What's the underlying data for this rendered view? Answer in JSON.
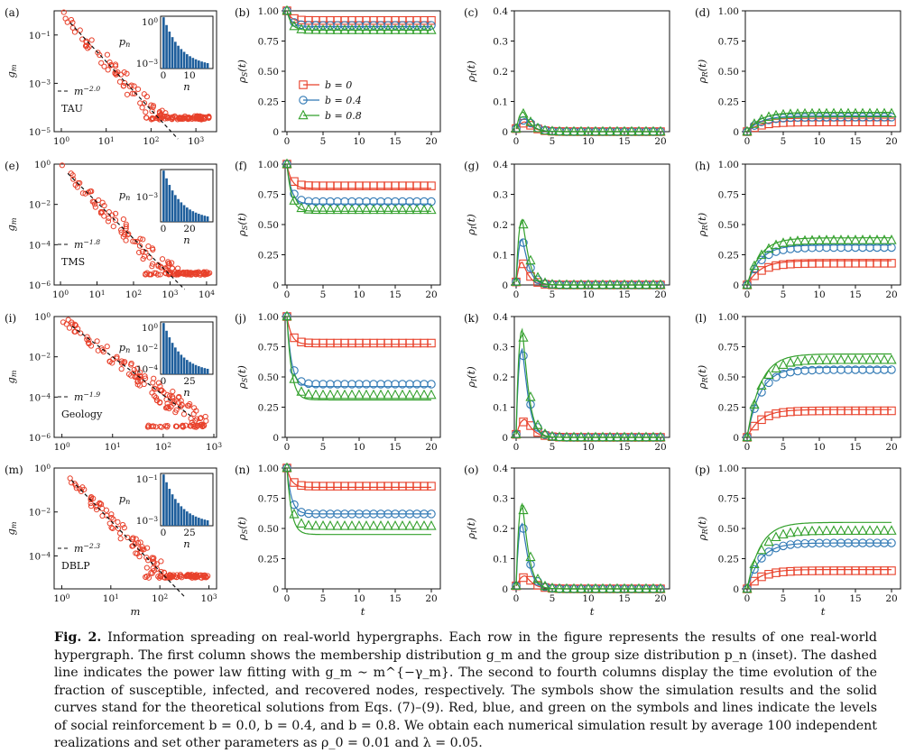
{
  "figure": {
    "colors": {
      "red": "#e8412b",
      "blue": "#2f78b4",
      "green": "#33a02c",
      "bar": "#1f5f9c",
      "black": "#111111"
    },
    "legend": [
      {
        "label": "b = 0",
        "color": "#e8412b",
        "marker": "square"
      },
      {
        "label": "b = 0.4",
        "color": "#2f78b4",
        "marker": "circle"
      },
      {
        "label": "b = 0.8",
        "color": "#33a02c",
        "marker": "triangle"
      }
    ],
    "rows": [
      {
        "dataset": "TAU",
        "membership": {
          "letter": "(a)",
          "ylabel": "g_m",
          "xlabel": "",
          "fit_label": "m^{-2.0}",
          "xmax_exp": 3.4,
          "ymin_exp": -5,
          "ymax_exp": 0,
          "xticks": [
            "10^0",
            "10^1",
            "10^2",
            "10^3"
          ],
          "yticks": [
            "10^{-1}",
            "10^{-3}",
            "10^{-5}"
          ],
          "ytick_exps": [
            -1,
            -3,
            -5
          ],
          "inset": {
            "ylabel": "p_n",
            "xlabel": "n",
            "yticks": [
              "10^0",
              "10^{-3}"
            ],
            "xticks": [
              "0",
              "10"
            ]
          }
        },
        "panels": [
          {
            "letter": "(b)",
            "ylabel": "ρ_S(t)",
            "ymax": 1.0,
            "yticks": [
              "0",
              "0.25",
              "0.50",
              "0.75",
              "1.00"
            ]
          },
          {
            "letter": "(c)",
            "ylabel": "ρ_I(t)",
            "ymax": 0.4,
            "yticks": [
              "0",
              "0.1",
              "0.2",
              "0.3",
              "0.4"
            ]
          },
          {
            "letter": "(d)",
            "ylabel": "ρ_R(t)",
            "ymax": 1.0,
            "yticks": [
              "0",
              "0.25",
              "0.50",
              "0.75",
              "1.00"
            ]
          }
        ]
      },
      {
        "dataset": "TMS",
        "membership": {
          "letter": "(e)",
          "ylabel": "g_m",
          "xlabel": "",
          "fit_label": "m^{-1.8}",
          "xmax_exp": 4.2,
          "ymin_exp": -6,
          "ymax_exp": 0,
          "xticks": [
            "10^0",
            "10^1",
            "10^2",
            "10^3",
            "10^4"
          ],
          "yticks": [
            "10^0",
            "10^{-2}",
            "10^{-4}",
            "10^{-6}"
          ],
          "ytick_exps": [
            0,
            -2,
            -4,
            -6
          ],
          "inset": {
            "ylabel": "p_n",
            "xlabel": "n",
            "yticks": [
              "10^{-3}"
            ],
            "xticks": [
              "0",
              "20"
            ]
          }
        },
        "panels": [
          {
            "letter": "(f)",
            "ylabel": "ρ_S(t)",
            "ymax": 1.0,
            "yticks": [
              "0",
              "0.25",
              "0.50",
              "0.75",
              "1.00"
            ]
          },
          {
            "letter": "(g)",
            "ylabel": "ρ_I(t)",
            "ymax": 0.4,
            "yticks": [
              "0",
              "0.1",
              "0.2",
              "0.3",
              "0.4"
            ]
          },
          {
            "letter": "(h)",
            "ylabel": "ρ_R(t)",
            "ymax": 1.0,
            "yticks": [
              "0",
              "0.25",
              "0.50",
              "0.75",
              "1.00"
            ]
          }
        ]
      },
      {
        "dataset": "Geology",
        "membership": {
          "letter": "(i)",
          "ylabel": "g_m",
          "xlabel": "",
          "fit_label": "m^{-1.9}",
          "xmax_exp": 3.0,
          "ymin_exp": -6,
          "ymax_exp": 0,
          "xticks": [
            "10^0",
            "10^1",
            "10^2",
            "10^3"
          ],
          "yticks": [
            "10^0",
            "10^{-2}",
            "10^{-4}",
            "10^{-6}"
          ],
          "ytick_exps": [
            0,
            -2,
            -4,
            -6
          ],
          "inset": {
            "ylabel": "p_n",
            "xlabel": "n",
            "yticks": [
              "10^0",
              "10^{-2}",
              "10^{-4}"
            ],
            "xticks": [
              "0",
              "25"
            ]
          }
        },
        "panels": [
          {
            "letter": "(j)",
            "ylabel": "ρ_S(t)",
            "ymax": 1.0,
            "yticks": [
              "0",
              "0.25",
              "0.50",
              "0.75",
              "1.00"
            ]
          },
          {
            "letter": "(k)",
            "ylabel": "ρ_I(t)",
            "ymax": 0.4,
            "yticks": [
              "0",
              "0.1",
              "0.2",
              "0.3",
              "0.4"
            ]
          },
          {
            "letter": "(l)",
            "ylabel": "ρ_R(t)",
            "ymax": 1.0,
            "yticks": [
              "0",
              "0.25",
              "0.50",
              "0.75",
              "1.00"
            ]
          }
        ]
      },
      {
        "dataset": "DBLP",
        "membership": {
          "letter": "(m)",
          "ylabel": "g_m",
          "xlabel": "m",
          "fit_label": "m^{-2.3}",
          "xmax_exp": 3.1,
          "ymin_exp": -5.5,
          "ymax_exp": 0,
          "xticks": [
            "10^0",
            "10^1",
            "10^2",
            "10^3"
          ],
          "yticks": [
            "10^0",
            "10^{-2}",
            "10^{-4}"
          ],
          "ytick_exps": [
            0,
            -2,
            -4
          ],
          "inset": {
            "ylabel": "p_n",
            "xlabel": "n",
            "yticks": [
              "10^{-1}",
              "10^{-3}"
            ],
            "xticks": [
              "0",
              "25"
            ]
          }
        },
        "panels": [
          {
            "letter": "(n)",
            "ylabel": "ρ_S(t)",
            "ymax": 1.0,
            "yticks": [
              "0",
              "0.25",
              "0.50",
              "0.75",
              "1.00"
            ]
          },
          {
            "letter": "(o)",
            "ylabel": "ρ_I(t)",
            "ymax": 0.4,
            "yticks": [
              "0",
              "0.1",
              "0.2",
              "0.3",
              "0.4"
            ]
          },
          {
            "letter": "(p)",
            "ylabel": "ρ_R(t)",
            "ymax": 1.0,
            "yticks": [
              "0",
              "0.25",
              "0.50",
              "0.75",
              "1.00"
            ]
          }
        ]
      }
    ],
    "time_xlabel": "t",
    "time_xticks": [
      "0",
      "5",
      "10",
      "15",
      "20"
    ]
  },
  "chart_data": [
    {
      "type": "line",
      "title": "(b)",
      "ylabel": "ρ_S(t)",
      "xlabel": "t",
      "xlim": [
        0,
        20
      ],
      "ylim": [
        0,
        1
      ],
      "series": [
        {
          "name": "b = 0",
          "sim_final": 0.92,
          "theory_final": 0.91
        },
        {
          "name": "b = 0.4",
          "sim_final": 0.88,
          "theory_final": 0.87
        },
        {
          "name": "b = 0.8",
          "sim_final": 0.84,
          "theory_final": 0.84
        }
      ]
    },
    {
      "type": "line",
      "title": "(c)",
      "ylabel": "ρ_I(t)",
      "xlabel": "t",
      "xlim": [
        0,
        20
      ],
      "ylim": [
        0,
        0.4
      ],
      "series": [
        {
          "name": "b = 0",
          "peak": 0.03,
          "peak_t": 1.5
        },
        {
          "name": "b = 0.4",
          "peak": 0.04,
          "peak_t": 1.5
        },
        {
          "name": "b = 0.8",
          "peak": 0.06,
          "peak_t": 1.2
        }
      ]
    },
    {
      "type": "line",
      "title": "(d)",
      "ylabel": "ρ_R(t)",
      "xlabel": "t",
      "xlim": [
        0,
        20
      ],
      "ylim": [
        0,
        1
      ],
      "series": [
        {
          "name": "b = 0",
          "sim_final": 0.08,
          "theory_final": 0.09
        },
        {
          "name": "b = 0.4",
          "sim_final": 0.12,
          "theory_final": 0.13
        },
        {
          "name": "b = 0.8",
          "sim_final": 0.15,
          "theory_final": 0.16
        }
      ]
    },
    {
      "type": "line",
      "title": "(f)",
      "ylabel": "ρ_S(t)",
      "xlabel": "t",
      "xlim": [
        0,
        20
      ],
      "ylim": [
        0,
        1
      ],
      "series": [
        {
          "name": "b = 0",
          "sim_final": 0.82,
          "theory_final": 0.8
        },
        {
          "name": "b = 0.4",
          "sim_final": 0.69,
          "theory_final": 0.67
        },
        {
          "name": "b = 0.8",
          "sim_final": 0.62,
          "theory_final": 0.61
        }
      ]
    },
    {
      "type": "line",
      "title": "(g)",
      "ylabel": "ρ_I(t)",
      "xlabel": "t",
      "xlim": [
        0,
        20
      ],
      "ylim": [
        0,
        0.4
      ],
      "series": [
        {
          "name": "b = 0",
          "peak": 0.07,
          "peak_t": 1
        },
        {
          "name": "b = 0.4",
          "peak": 0.14,
          "peak_t": 1
        },
        {
          "name": "b = 0.8",
          "peak": 0.2,
          "peak_t": 1
        }
      ]
    },
    {
      "type": "line",
      "title": "(h)",
      "ylabel": "ρ_R(t)",
      "xlabel": "t",
      "xlim": [
        0,
        20
      ],
      "ylim": [
        0,
        1
      ],
      "series": [
        {
          "name": "b = 0",
          "sim_final": 0.18,
          "theory_final": 0.2
        },
        {
          "name": "b = 0.4",
          "sim_final": 0.31,
          "theory_final": 0.33
        },
        {
          "name": "b = 0.8",
          "sim_final": 0.37,
          "theory_final": 0.39
        }
      ]
    },
    {
      "type": "line",
      "title": "(j)",
      "ylabel": "ρ_S(t)",
      "xlabel": "t",
      "xlim": [
        0,
        20
      ],
      "ylim": [
        0,
        1
      ],
      "series": [
        {
          "name": "b = 0",
          "sim_final": 0.78,
          "theory_final": 0.77
        },
        {
          "name": "b = 0.4",
          "sim_final": 0.44,
          "theory_final": 0.42
        },
        {
          "name": "b = 0.8",
          "sim_final": 0.35,
          "theory_final": 0.31
        }
      ]
    },
    {
      "type": "line",
      "title": "(k)",
      "ylabel": "ρ_I(t)",
      "xlabel": "t",
      "xlim": [
        0,
        20
      ],
      "ylim": [
        0,
        0.4
      ],
      "series": [
        {
          "name": "b = 0",
          "peak": 0.055,
          "peak_t": 1.5
        },
        {
          "name": "b = 0.4",
          "peak": 0.27,
          "peak_t": 1
        },
        {
          "name": "b = 0.8",
          "peak": 0.33,
          "peak_t": 1
        }
      ]
    },
    {
      "type": "line",
      "title": "(l)",
      "ylabel": "ρ_R(t)",
      "xlabel": "t",
      "xlim": [
        0,
        20
      ],
      "ylim": [
        0,
        1
      ],
      "series": [
        {
          "name": "b = 0",
          "sim_final": 0.22,
          "theory_final": 0.23
        },
        {
          "name": "b = 0.4",
          "sim_final": 0.56,
          "theory_final": 0.58
        },
        {
          "name": "b = 0.8",
          "sim_final": 0.64,
          "theory_final": 0.69
        }
      ]
    },
    {
      "type": "line",
      "title": "(n)",
      "ylabel": "ρ_S(t)",
      "xlabel": "t",
      "xlim": [
        0,
        20
      ],
      "ylim": [
        0,
        1
      ],
      "series": [
        {
          "name": "b = 0",
          "sim_final": 0.85,
          "theory_final": 0.84
        },
        {
          "name": "b = 0.4",
          "sim_final": 0.62,
          "theory_final": 0.62
        },
        {
          "name": "b = 0.8",
          "sim_final": 0.52,
          "theory_final": 0.45
        }
      ]
    },
    {
      "type": "line",
      "title": "(o)",
      "ylabel": "ρ_I(t)",
      "xlabel": "t",
      "xlim": [
        0,
        20
      ],
      "ylim": [
        0,
        0.4
      ],
      "series": [
        {
          "name": "b = 0",
          "peak": 0.04,
          "peak_t": 1.5
        },
        {
          "name": "b = 0.4",
          "peak": 0.2,
          "peak_t": 1
        },
        {
          "name": "b = 0.8",
          "peak": 0.26,
          "peak_t": 1
        }
      ]
    },
    {
      "type": "line",
      "title": "(p)",
      "ylabel": "ρ_R(t)",
      "xlabel": "t",
      "xlim": [
        0,
        20
      ],
      "ylim": [
        0,
        1
      ],
      "series": [
        {
          "name": "b = 0",
          "sim_final": 0.15,
          "theory_final": 0.16
        },
        {
          "name": "b = 0.4",
          "sim_final": 0.38,
          "theory_final": 0.38
        },
        {
          "name": "b = 0.8",
          "sim_final": 0.48,
          "theory_final": 0.55
        }
      ]
    }
  ],
  "caption": {
    "label": "Fig. 2.",
    "text": " Information spreading on real-world hypergraphs. Each row in the figure represents the results of one real-world hypergraph. The first column shows the membership distribution g_m and the group size distribution p_n (inset). The dashed line indicates the power law fitting with g_m ∼ m^{−γ_m}. The second to fourth columns display the time evolution of the fraction of susceptible, infected, and recovered nodes, respectively. The symbols show the simulation results and the solid curves stand for the theoretical solutions from Eqs. (7)–(9). Red, blue, and green on the symbols and lines indicate the levels of social reinforcement b = 0.0, b = 0.4, and b = 0.8. We obtain each numerical simulation result by average 100 independent realizations and set other parameters as ρ_0 = 0.01 and λ = 0.05."
  }
}
